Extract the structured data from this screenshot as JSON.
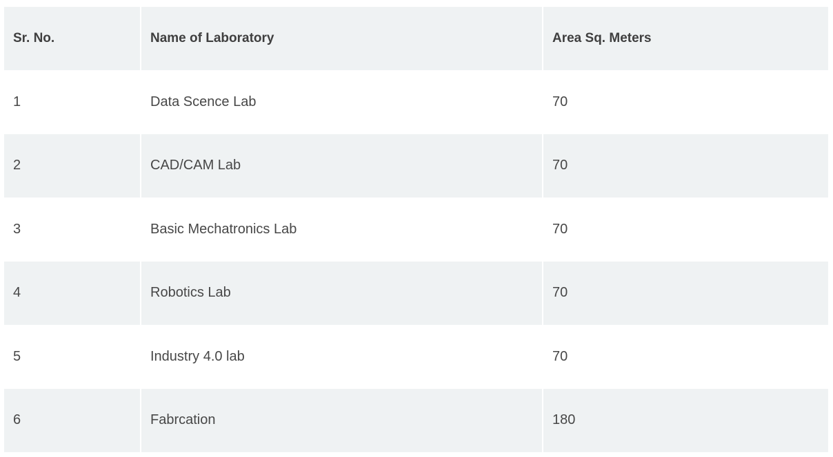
{
  "table": {
    "headers": [
      "Sr. No.",
      "Name of Laboratory",
      "Area Sq. Meters"
    ],
    "rows": [
      [
        "1",
        "Data Scence Lab",
        "70"
      ],
      [
        "2",
        "CAD/CAM Lab",
        "70"
      ],
      [
        "3",
        "Basic Mechatronics Lab",
        "70"
      ],
      [
        "4",
        "Robotics Lab",
        "70"
      ],
      [
        "5",
        "Industry 4.0 lab",
        "70"
      ],
      [
        "6",
        "Fabrcation",
        "180"
      ]
    ],
    "colors": {
      "header_bg": "#eff2f3",
      "stripe_bg": "#eff2f3",
      "row_bg": "#ffffff",
      "text": "#474747"
    }
  }
}
